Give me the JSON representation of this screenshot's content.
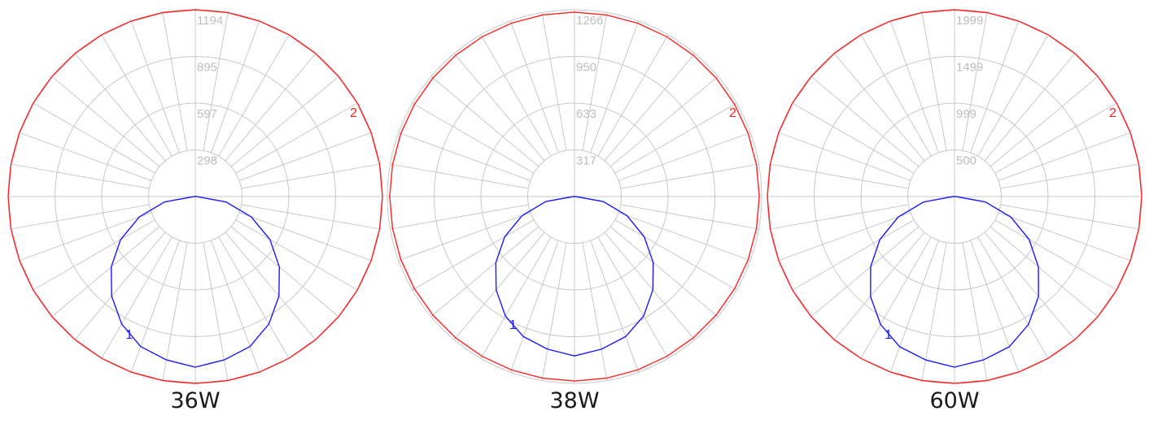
{
  "colors": {
    "grid": "#c8c8c8",
    "curve_1": "#1a1aff",
    "curve_2": "#ff2020",
    "tick_text": "#bdbdbd"
  },
  "chart_data": [
    {
      "type": "polar",
      "caption": "36W",
      "radial_ticks": [
        298,
        597,
        895,
        1194
      ],
      "r_max": 1194,
      "angle_step_deg": 10,
      "grid": true,
      "series": [
        {
          "label": "1",
          "color": "#1a1aff",
          "angles_deg": [
            0,
            10,
            20,
            30,
            40,
            50,
            60,
            70,
            80,
            90
          ],
          "values": [
            1090,
            1060,
            1020,
            940,
            830,
            700,
            550,
            380,
            200,
            10
          ]
        },
        {
          "label": "2",
          "color": "#ff2020",
          "angles_deg": [
            0,
            10,
            20,
            30,
            40,
            50,
            60,
            70,
            80,
            90,
            100,
            110,
            120,
            130,
            140,
            150,
            160,
            170,
            180
          ],
          "values": [
            1194,
            1194,
            1194,
            1194,
            1194,
            1194,
            1194,
            1194,
            1194,
            1194,
            1194,
            1194,
            1194,
            1194,
            1194,
            1194,
            1194,
            1194,
            1194
          ]
        }
      ]
    },
    {
      "type": "polar",
      "caption": "38W",
      "radial_ticks": [
        317,
        633,
        950,
        1266
      ],
      "r_max": 1266,
      "angle_step_deg": 10,
      "grid": true,
      "series": [
        {
          "label": "1",
          "color": "#1a1aff",
          "angles_deg": [
            0,
            10,
            20,
            30,
            40,
            50,
            60,
            70,
            80,
            90
          ],
          "values": [
            1080,
            1050,
            1010,
            935,
            825,
            695,
            545,
            378,
            198,
            10
          ]
        },
        {
          "label": "2",
          "color": "#ff2020",
          "angles_deg": [
            0,
            10,
            20,
            30,
            40,
            50,
            60,
            70,
            80,
            90,
            100,
            110,
            120,
            130,
            140,
            150,
            160,
            170,
            180
          ],
          "values": [
            1250,
            1250,
            1250,
            1250,
            1250,
            1250,
            1250,
            1250,
            1250,
            1250,
            1250,
            1250,
            1250,
            1250,
            1250,
            1250,
            1250,
            1250,
            1250
          ]
        }
      ]
    },
    {
      "type": "polar",
      "caption": "60W",
      "radial_ticks": [
        500,
        999,
        1499,
        1999
      ],
      "r_max": 1999,
      "angle_step_deg": 10,
      "grid": true,
      "series": [
        {
          "label": "1",
          "color": "#1a1aff",
          "angles_deg": [
            0,
            10,
            20,
            30,
            40,
            50,
            60,
            70,
            80,
            90
          ],
          "values": [
            1825,
            1775,
            1710,
            1580,
            1395,
            1170,
            920,
            640,
            335,
            17
          ]
        },
        {
          "label": "2",
          "color": "#ff2020",
          "angles_deg": [
            0,
            10,
            20,
            30,
            40,
            50,
            60,
            70,
            80,
            90,
            100,
            110,
            120,
            130,
            140,
            150,
            160,
            170,
            180
          ],
          "values": [
            1999,
            1999,
            1999,
            1999,
            1999,
            1999,
            1999,
            1999,
            1999,
            1999,
            1999,
            1999,
            1999,
            1999,
            1999,
            1999,
            1999,
            1999,
            1999
          ]
        }
      ]
    }
  ]
}
